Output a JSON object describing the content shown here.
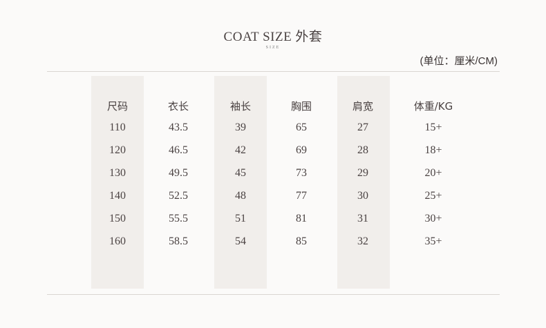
{
  "title": "COAT  SIZE  外套",
  "subtitle": "SIZE",
  "unit": "(单位：厘米/CM)",
  "table": {
    "headers": [
      "尺码",
      "衣长",
      "袖长",
      "胸围",
      "肩宽",
      "体重/KG"
    ],
    "rows": [
      [
        "110",
        "43.5",
        "39",
        "65",
        "27",
        "15+"
      ],
      [
        "120",
        "46.5",
        "42",
        "69",
        "28",
        "18+"
      ],
      [
        "130",
        "49.5",
        "45",
        "73",
        "29",
        "20+"
      ],
      [
        "140",
        "52.5",
        "48",
        "77",
        "30",
        "25+"
      ],
      [
        "150",
        "55.5",
        "51",
        "81",
        "31",
        "30+"
      ],
      [
        "160",
        "58.5",
        "54",
        "85",
        "32",
        "35+"
      ]
    ]
  }
}
